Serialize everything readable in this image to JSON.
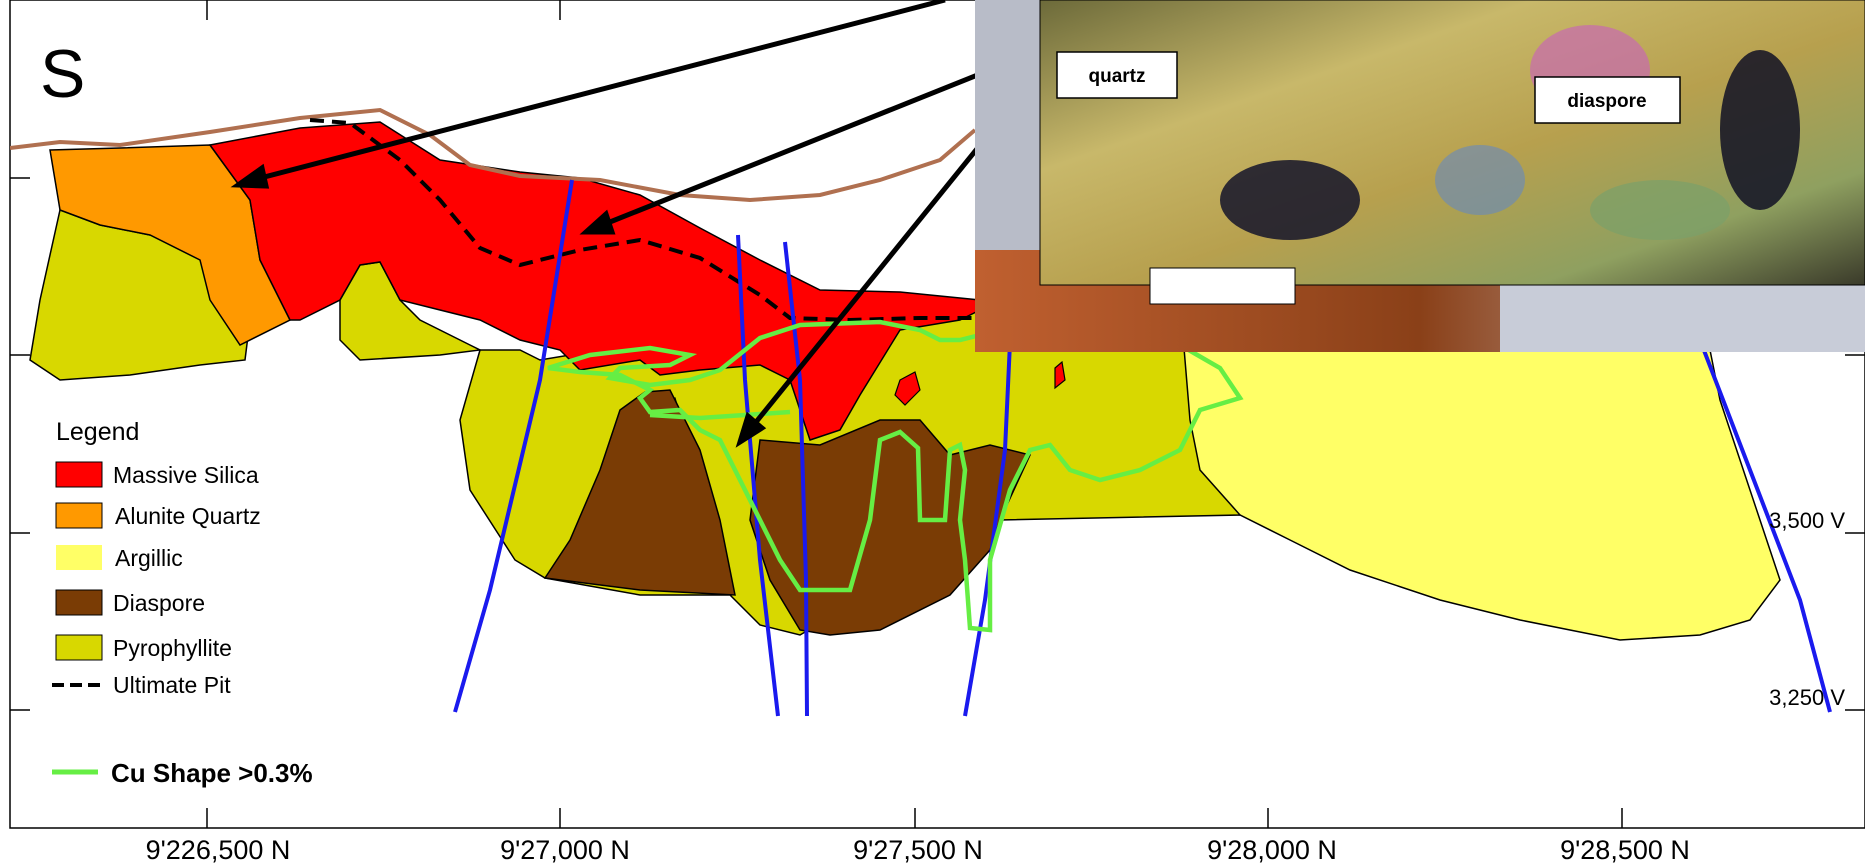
{
  "section_letter": "S",
  "legend": {
    "title": "Legend",
    "items": [
      {
        "label": "Massive Silica",
        "color": "#ff0000"
      },
      {
        "label": "Alunite Quartz",
        "color": "#ff9900"
      },
      {
        "label": "Argillic",
        "color": "#ffff66"
      },
      {
        "label": "Diaspore",
        "color": "#7a3c05"
      },
      {
        "label": "Pyrophyllite",
        "color": "#d8d800"
      },
      {
        "label": "Ultimate Pit",
        "color": "#000000",
        "style": "dashed"
      }
    ],
    "cu_shape": {
      "label": "Cu Shape >0.3%",
      "color": "#66ee44"
    }
  },
  "elevation_labels": [
    "3,500 V",
    "3,250 V"
  ],
  "northing_labels": [
    "9'226,500 N",
    "9'27,000 N",
    "9'27,500 N",
    "9'28,000 N",
    "9'28,500 N"
  ],
  "inset": {
    "labels": [
      "quartz",
      "diaspore"
    ]
  },
  "colors": {
    "drillhole": "#1a1aee",
    "topography": "#b07050"
  }
}
